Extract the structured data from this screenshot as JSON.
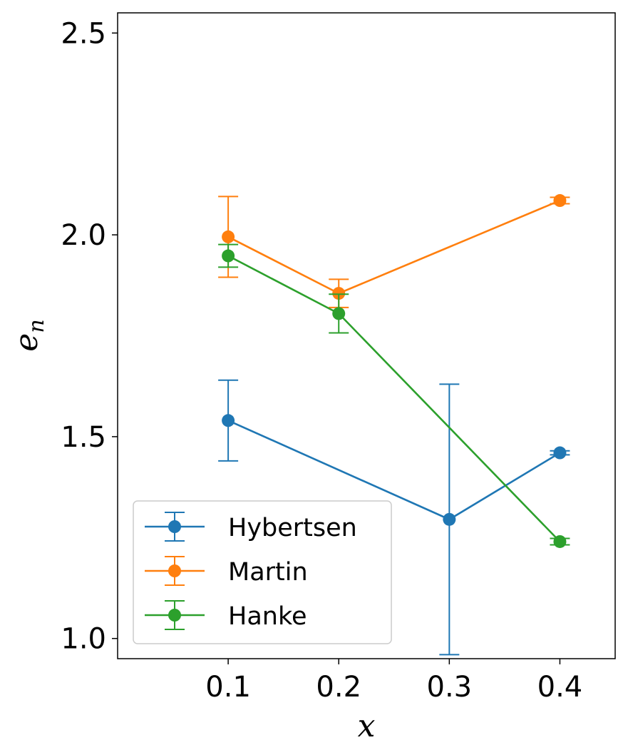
{
  "chart_data": {
    "type": "line",
    "title": "",
    "xlabel": "x",
    "ylabel_base": "e",
    "ylabel_sub": "n",
    "xlim": [
      0.0,
      0.45
    ],
    "ylim": [
      0.95,
      2.55
    ],
    "xticks": [
      0.1,
      0.2,
      0.3,
      0.4
    ],
    "xtick_labels": [
      "0.1",
      "0.2",
      "0.3",
      "0.4"
    ],
    "yticks": [
      1.0,
      1.5,
      2.0,
      2.5
    ],
    "ytick_labels": [
      "1.0",
      "1.5",
      "2.0",
      "2.5"
    ],
    "grid": false,
    "legend_position": "lower-left",
    "series": [
      {
        "name": "Hybertsen",
        "color": "#1f77b4",
        "x": [
          0.1,
          0.3,
          0.4
        ],
        "y": [
          1.54,
          1.295,
          1.46
        ],
        "yerr": [
          0.1,
          0.335,
          0.005
        ]
      },
      {
        "name": "Martin",
        "color": "#ff7f0e",
        "x": [
          0.1,
          0.2,
          0.4
        ],
        "y": [
          1.995,
          1.855,
          2.085
        ],
        "yerr": [
          0.1,
          0.035,
          0.008
        ]
      },
      {
        "name": "Hanke",
        "color": "#2ca02c",
        "x": [
          0.1,
          0.2,
          0.4
        ],
        "y": [
          1.948,
          1.805,
          1.24
        ],
        "yerr": [
          0.028,
          0.048,
          0.008
        ]
      }
    ]
  }
}
